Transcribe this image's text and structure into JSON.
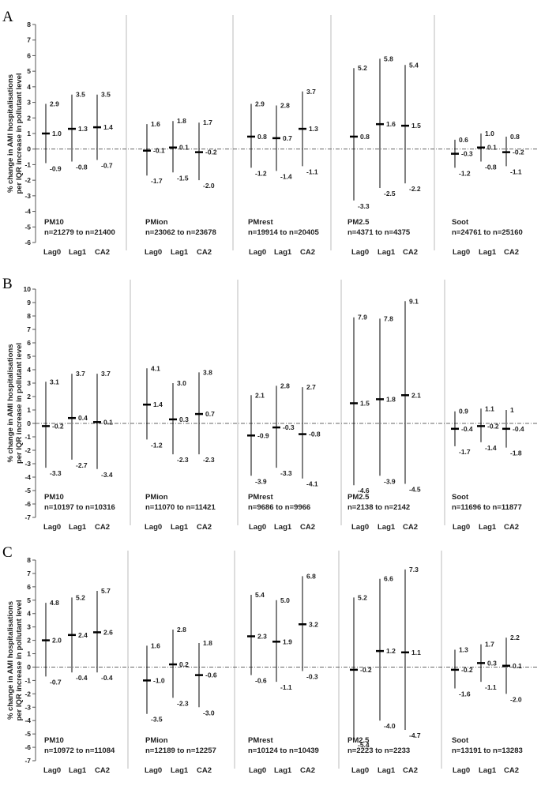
{
  "y_label_lines": [
    "% change in AMI hospitalisations",
    "per IQR increase in pollutant level"
  ],
  "chart_data": [
    {
      "type": "error-bar",
      "panel": "A",
      "ylim": [
        -6,
        8
      ],
      "yticks": [
        "-6",
        "-5",
        "-4",
        "-3",
        "-2",
        "-1",
        "0",
        "1",
        "2",
        "3",
        "4",
        "5",
        "6",
        "7",
        "8"
      ],
      "groups": [
        {
          "pollutant": "PM10",
          "n_range": "n=21279 to n=21400",
          "points": [
            {
              "lag": "Lag0",
              "est": 1.0,
              "lo": -0.9,
              "hi": 2.9,
              "est_label": "1.0",
              "lo_label": "-0.9",
              "hi_label": "2.9"
            },
            {
              "lag": "Lag1",
              "est": 1.3,
              "lo": -0.8,
              "hi": 3.5,
              "est_label": "1.3",
              "lo_label": "-0.8",
              "hi_label": "3.5"
            },
            {
              "lag": "CA2",
              "est": 1.4,
              "lo": -0.7,
              "hi": 3.5,
              "est_label": "1.4",
              "lo_label": "-0.7",
              "hi_label": "3.5"
            }
          ]
        },
        {
          "pollutant": "PMion",
          "n_range": "n=23062 to n=23678",
          "points": [
            {
              "lag": "Lag0",
              "est": -0.1,
              "lo": -1.7,
              "hi": 1.6,
              "est_label": "-0.1",
              "lo_label": "-1.7",
              "hi_label": "1.6"
            },
            {
              "lag": "Lag1",
              "est": 0.1,
              "lo": -1.5,
              "hi": 1.8,
              "est_label": "0.1",
              "lo_label": "-1.5",
              "hi_label": "1.8"
            },
            {
              "lag": "CA2",
              "est": -0.2,
              "lo": -2.0,
              "hi": 1.7,
              "est_label": "-0.2",
              "lo_label": "-2.0",
              "hi_label": "1.7"
            }
          ]
        },
        {
          "pollutant": "PMrest",
          "n_range": "n=19914 to n=20405",
          "points": [
            {
              "lag": "Lag0",
              "est": 0.8,
              "lo": -1.2,
              "hi": 2.9,
              "est_label": "0.8",
              "lo_label": "-1.2",
              "hi_label": "2.9"
            },
            {
              "lag": "Lag1",
              "est": 0.7,
              "lo": -1.4,
              "hi": 2.8,
              "est_label": "0.7",
              "lo_label": "-1.4",
              "hi_label": "2.8"
            },
            {
              "lag": "CA2",
              "est": 1.3,
              "lo": -1.1,
              "hi": 3.7,
              "est_label": "1.3",
              "lo_label": "-1.1",
              "hi_label": "3.7"
            }
          ]
        },
        {
          "pollutant": "PM2.5",
          "n_range": "n=4371 to n=4375",
          "points": [
            {
              "lag": "Lag0",
              "est": 0.8,
              "lo": -3.3,
              "hi": 5.2,
              "est_label": "0.8",
              "lo_label": "-3.3",
              "hi_label": "5.2"
            },
            {
              "lag": "Lag1",
              "est": 1.6,
              "lo": -2.5,
              "hi": 5.8,
              "est_label": "1.6",
              "lo_label": "-2.5",
              "hi_label": "5.8"
            },
            {
              "lag": "CA2",
              "est": 1.5,
              "lo": -2.2,
              "hi": 5.4,
              "est_label": "1.5",
              "lo_label": "-2.2",
              "hi_label": "5.4"
            }
          ]
        },
        {
          "pollutant": "Soot",
          "n_range": "n=24761 to n=25160",
          "points": [
            {
              "lag": "Lag0",
              "est": -0.3,
              "lo": -1.2,
              "hi": 0.6,
              "est_label": "-0.3",
              "lo_label": "-1.2",
              "hi_label": "0.6"
            },
            {
              "lag": "Lag1",
              "est": 0.1,
              "lo": -0.8,
              "hi": 1.0,
              "est_label": "0.1",
              "lo_label": "-0.8",
              "hi_label": "1.0"
            },
            {
              "lag": "CA2",
              "est": -0.2,
              "lo": -1.1,
              "hi": 0.8,
              "est_label": "-0.2",
              "lo_label": "-1.1",
              "hi_label": "0.8"
            }
          ]
        }
      ]
    },
    {
      "type": "error-bar",
      "panel": "B",
      "ylim": [
        -7,
        10
      ],
      "yticks": [
        "-7",
        "-6",
        "-5",
        "-4",
        "-3",
        "-2",
        "-1",
        "0",
        "1",
        "2",
        "3",
        "4",
        "5",
        "6",
        "7",
        "8",
        "9",
        "10"
      ],
      "groups": [
        {
          "pollutant": "PM10",
          "n_range": "n=10197 to n=10316",
          "points": [
            {
              "lag": "Lag0",
              "est": -0.2,
              "lo": -3.3,
              "hi": 3.1,
              "est_label": "-0.2",
              "lo_label": "-3.3",
              "hi_label": "3.1"
            },
            {
              "lag": "Lag1",
              "est": 0.4,
              "lo": -2.7,
              "hi": 3.7,
              "est_label": "0.4",
              "lo_label": "-2.7",
              "hi_label": "3.7"
            },
            {
              "lag": "CA2",
              "est": 0.1,
              "lo": -3.4,
              "hi": 3.7,
              "est_label": "0.1",
              "lo_label": "-3.4",
              "hi_label": "3.7"
            }
          ]
        },
        {
          "pollutant": "PMion",
          "n_range": "n=11070 to n=11421",
          "points": [
            {
              "lag": "Lag0",
              "est": 1.4,
              "lo": -1.2,
              "hi": 4.1,
              "est_label": "1.4",
              "lo_label": "-1.2",
              "hi_label": "4.1"
            },
            {
              "lag": "Lag1",
              "est": 0.3,
              "lo": -2.3,
              "hi": 3.0,
              "est_label": "0.3",
              "lo_label": "-2.3",
              "hi_label": "3.0"
            },
            {
              "lag": "CA2",
              "est": 0.7,
              "lo": -2.3,
              "hi": 3.8,
              "est_label": "0.7",
              "lo_label": "-2.3",
              "hi_label": "3.8"
            }
          ]
        },
        {
          "pollutant": "PMrest",
          "n_range": "n=9686 to n=9966",
          "points": [
            {
              "lag": "Lag0",
              "est": -0.9,
              "lo": -3.9,
              "hi": 2.1,
              "est_label": "-0.9",
              "lo_label": "-3.9",
              "hi_label": "2.1"
            },
            {
              "lag": "Lag1",
              "est": -0.3,
              "lo": -3.3,
              "hi": 2.8,
              "est_label": "-0.3",
              "lo_label": "-3.3",
              "hi_label": "2.8"
            },
            {
              "lag": "CA2",
              "est": -0.8,
              "lo": -4.1,
              "hi": 2.7,
              "est_label": "-0.8",
              "lo_label": "-4.1",
              "hi_label": "2.7"
            }
          ]
        },
        {
          "pollutant": "PM2.5",
          "n_range": "n=2138 to n=2142",
          "points": [
            {
              "lag": "Lag0",
              "est": 1.5,
              "lo": -4.6,
              "hi": 7.9,
              "est_label": "1.5",
              "lo_label": "-4.6",
              "hi_label": "7.9"
            },
            {
              "lag": "Lag1",
              "est": 1.8,
              "lo": -3.9,
              "hi": 7.8,
              "est_label": "1.8",
              "lo_label": "-3.9",
              "hi_label": "7.8"
            },
            {
              "lag": "CA2",
              "est": 2.1,
              "lo": -4.5,
              "hi": 9.1,
              "est_label": "2.1",
              "lo_label": "-4.5",
              "hi_label": "9.1"
            }
          ]
        },
        {
          "pollutant": "Soot",
          "n_range": "n=11696 to n=11877",
          "points": [
            {
              "lag": "Lag0",
              "est": -0.4,
              "lo": -1.7,
              "hi": 0.9,
              "est_label": "-0.4",
              "lo_label": "-1.7",
              "hi_label": "0.9"
            },
            {
              "lag": "Lag1",
              "est": -0.2,
              "lo": -1.4,
              "hi": 1.1,
              "est_label": "-0.2",
              "lo_label": "-1.4",
              "hi_label": "1.1"
            },
            {
              "lag": "CA2",
              "est": -0.4,
              "lo": -1.8,
              "hi": 1.0,
              "est_label": "-0.4",
              "lo_label": "-1.8",
              "hi_label": "1"
            }
          ]
        }
      ]
    },
    {
      "type": "error-bar",
      "panel": "C",
      "ylim": [
        -7,
        8
      ],
      "yticks": [
        "-7",
        "-6",
        "-5",
        "-4",
        "-3",
        "-2",
        "-1",
        "0",
        "1",
        "2",
        "3",
        "4",
        "5",
        "6",
        "7",
        "8"
      ],
      "groups": [
        {
          "pollutant": "PM10",
          "n_range": "n=10972 to n=11084",
          "points": [
            {
              "lag": "Lag0",
              "est": 2.0,
              "lo": -0.7,
              "hi": 4.8,
              "est_label": "2.0",
              "lo_label": "-0.7",
              "hi_label": "4.8"
            },
            {
              "lag": "Lag1",
              "est": 2.4,
              "lo": -0.4,
              "hi": 5.2,
              "est_label": "2.4",
              "lo_label": "-0.4",
              "hi_label": "5.2"
            },
            {
              "lag": "CA2",
              "est": 2.6,
              "lo": -0.4,
              "hi": 5.7,
              "est_label": "2.6",
              "lo_label": "-0.4",
              "hi_label": "5.7"
            }
          ]
        },
        {
          "pollutant": "PMion",
          "n_range": "n=12189 to n=12257",
          "points": [
            {
              "lag": "Lag0",
              "est": -1.0,
              "lo": -3.5,
              "hi": 1.6,
              "est_label": "-1.0",
              "lo_label": "-3.5",
              "hi_label": "1.6"
            },
            {
              "lag": "Lag1",
              "est": 0.2,
              "lo": -2.3,
              "hi": 2.8,
              "est_label": "0.2",
              "lo_label": "-2.3",
              "hi_label": "2.8"
            },
            {
              "lag": "CA2",
              "est": -0.6,
              "lo": -3.0,
              "hi": 1.8,
              "est_label": "-0.6",
              "lo_label": "-3.0",
              "hi_label": "1.8"
            }
          ]
        },
        {
          "pollutant": "PMrest",
          "n_range": "n=10124 to n=10439",
          "points": [
            {
              "lag": "Lag0",
              "est": 2.3,
              "lo": -0.6,
              "hi": 5.4,
              "est_label": "2.3",
              "lo_label": "-0.6",
              "hi_label": "5.4"
            },
            {
              "lag": "Lag1",
              "est": 1.9,
              "lo": -1.1,
              "hi": 5.0,
              "est_label": "1.9",
              "lo_label": "-1.1",
              "hi_label": "5.0"
            },
            {
              "lag": "CA2",
              "est": 3.2,
              "lo": -0.3,
              "hi": 6.8,
              "est_label": "3.2",
              "lo_label": "-0.3",
              "hi_label": "6.8"
            }
          ]
        },
        {
          "pollutant": "PM2.5",
          "n_range": "n=2223 to n=2233",
          "points": [
            {
              "lag": "Lag0",
              "est": -0.2,
              "lo": -5.4,
              "hi": 5.2,
              "est_label": "-0.2",
              "lo_label": "-5.4",
              "hi_label": "5.2"
            },
            {
              "lag": "Lag1",
              "est": 1.2,
              "lo": -4.0,
              "hi": 6.6,
              "est_label": "1.2",
              "lo_label": "-4.0",
              "hi_label": "6.6"
            },
            {
              "lag": "CA2",
              "est": 1.1,
              "lo": -4.7,
              "hi": 7.3,
              "est_label": "1.1",
              "lo_label": "-4.7",
              "hi_label": "7.3"
            }
          ]
        },
        {
          "pollutant": "Soot",
          "n_range": "n=13191 to n=13283",
          "points": [
            {
              "lag": "Lag0",
              "est": -0.2,
              "lo": -1.6,
              "hi": 1.3,
              "est_label": "-0.2",
              "lo_label": "-1.6",
              "hi_label": "1.3"
            },
            {
              "lag": "Lag1",
              "est": 0.3,
              "lo": -1.1,
              "hi": 1.7,
              "est_label": "0.3",
              "lo_label": "-1.1",
              "hi_label": "1.7"
            },
            {
              "lag": "CA2",
              "est": 0.1,
              "lo": -2.0,
              "hi": 2.2,
              "est_label": "0.1",
              "lo_label": "-2.0",
              "hi_label": "2.2"
            }
          ]
        }
      ]
    }
  ]
}
